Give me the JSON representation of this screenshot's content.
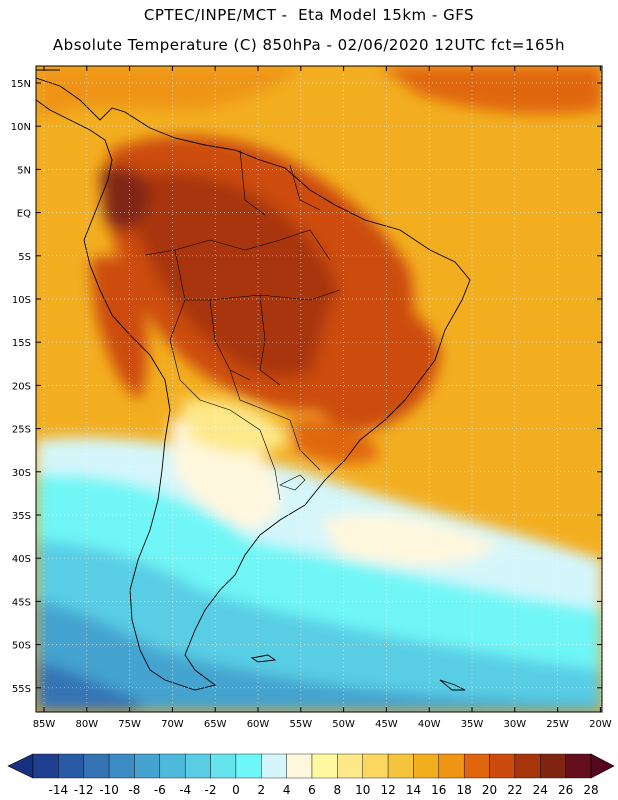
{
  "header": {
    "line1": "CPTEC/INPE/MCT -  Eta Model 15km - GFS",
    "line2": "Absolute Temperature (C) 850hPa - 02/06/2020 12UTC fct=165h"
  },
  "axes": {
    "lat_labels": [
      "15N",
      "10N",
      "5N",
      "EQ",
      "5S",
      "10S",
      "15S",
      "20S",
      "25S",
      "30S",
      "35S",
      "40S",
      "45S",
      "50S",
      "55S"
    ],
    "lon_labels": [
      "85W",
      "80W",
      "75W",
      "70W",
      "65W",
      "60W",
      "55W",
      "50W",
      "45W",
      "40W",
      "35W",
      "30W",
      "25W",
      "20W"
    ]
  },
  "colorbar": {
    "labels": [
      "-14",
      "-12",
      "-10",
      "-8",
      "-6",
      "-4",
      "-2",
      "0",
      "2",
      "4",
      "6",
      "8",
      "10",
      "12",
      "14",
      "16",
      "18",
      "20",
      "22",
      "24",
      "26",
      "28"
    ],
    "colors": [
      "#1f3f8f",
      "#2a5aa6",
      "#3573b5",
      "#3d8cc4",
      "#45a3cf",
      "#4fb9dc",
      "#58cde4",
      "#66e3ec",
      "#6ff6f6",
      "#d4f6fb",
      "#fff7dd",
      "#fffaa0",
      "#fde98a",
      "#fbd760",
      "#f5c43e",
      "#f3ae20",
      "#ef9413",
      "#e0660e",
      "#cc4b0c",
      "#a8360c",
      "#802512",
      "#650f1c"
    ],
    "under_color": "#183080",
    "over_color": "#550720"
  }
}
